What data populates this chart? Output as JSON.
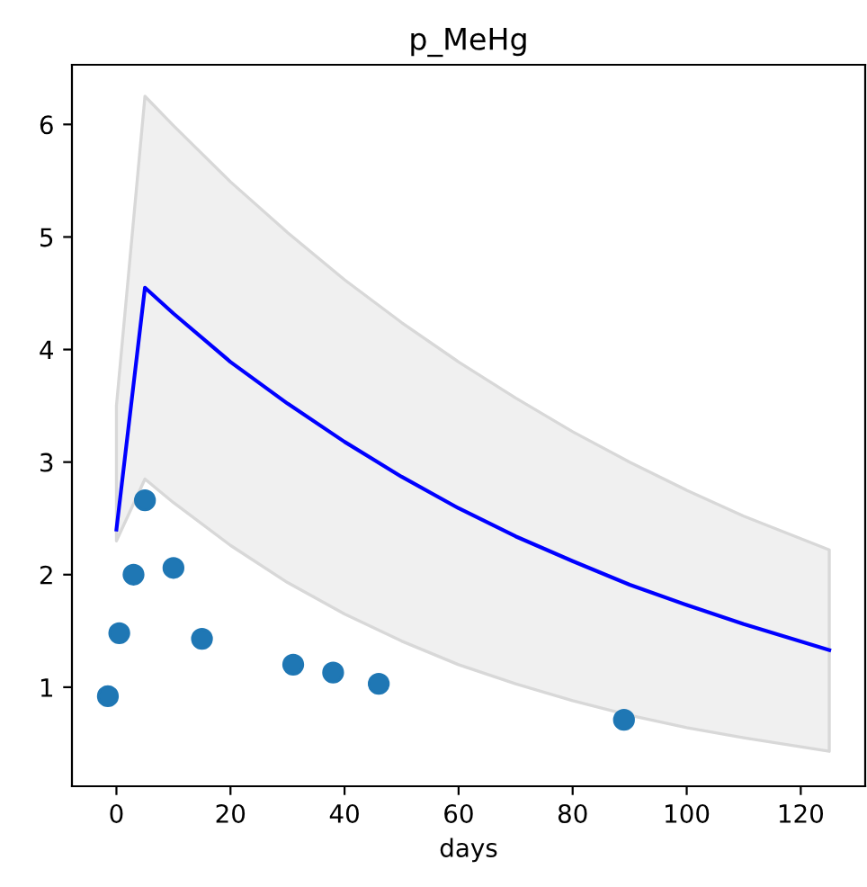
{
  "chart_data": {
    "type": "line",
    "title": "p_MeHg",
    "xlabel": "days",
    "xlim": [
      -7.8,
      131.3
    ],
    "ylim": [
      0.12,
      6.53
    ],
    "xticks": [
      0,
      20,
      40,
      60,
      80,
      100,
      120
    ],
    "yticks": [
      1,
      2,
      3,
      4,
      5,
      6
    ],
    "grid": false,
    "legend": false,
    "series": [
      {
        "color": "#0000ff",
        "marker": "none",
        "x": [
          0,
          5,
          10,
          20,
          30,
          40,
          50,
          60,
          70,
          80,
          90,
          100,
          110,
          125
        ],
        "values": [
          2.4,
          4.55,
          4.32,
          3.89,
          3.52,
          3.18,
          2.87,
          2.59,
          2.34,
          2.12,
          1.91,
          1.73,
          1.56,
          1.33
        ],
        "upper": [
          3.5,
          6.25,
          5.99,
          5.49,
          5.04,
          4.62,
          4.24,
          3.89,
          3.57,
          3.27,
          3.0,
          2.75,
          2.52,
          2.22
        ],
        "lower": [
          2.3,
          2.85,
          2.64,
          2.26,
          1.93,
          1.65,
          1.41,
          1.2,
          1.03,
          0.88,
          0.75,
          0.64,
          0.55,
          0.43
        ]
      },
      {
        "type": "scatter",
        "color": "#1f77b4",
        "marker": "circle",
        "x": [
          -1.5,
          0.5,
          3,
          5,
          10,
          15,
          31,
          38,
          46,
          89
        ],
        "values": [
          0.92,
          1.48,
          2.0,
          2.66,
          2.06,
          1.43,
          1.2,
          1.13,
          1.03,
          0.71
        ]
      }
    ]
  }
}
